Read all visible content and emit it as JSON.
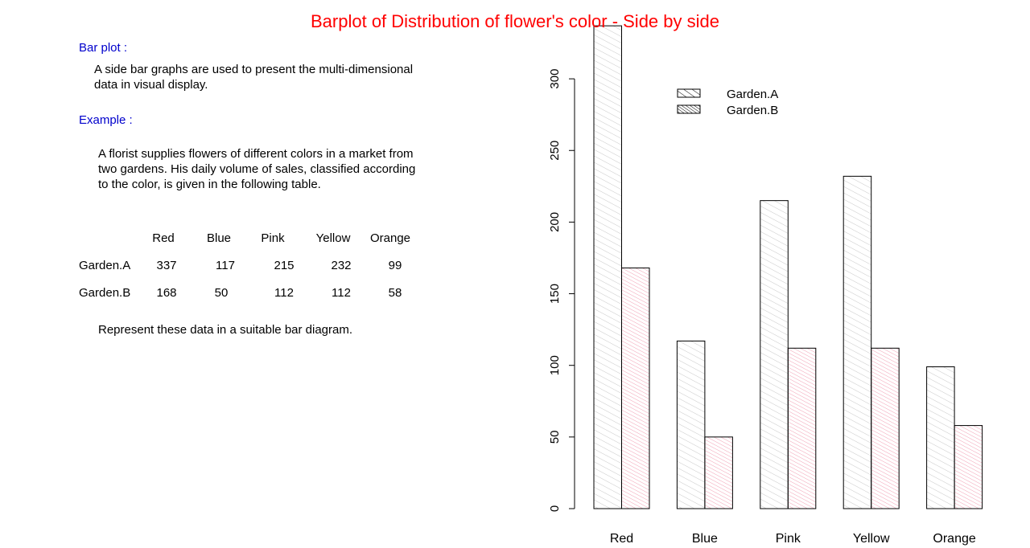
{
  "title": "Barplot of Distribution of flower's color - Side by side",
  "left_panel": {
    "barplot_heading": "Bar plot :",
    "barplot_text_1": "A side bar graphs are used to present the multi-dimensional",
    "barplot_text_2": "data in visual display.",
    "example_heading": "Example :",
    "example_text_1": "A florist supplies flowers of different colors in a market from",
    "example_text_2": "two gardens. His daily volume of sales, classified according",
    "example_text_3": "to the color, is given in the following table.",
    "table": {
      "headers": [
        "Red",
        "Blue",
        "Pink",
        "Yellow",
        "Orange"
      ],
      "rows": [
        {
          "label": "Garden.A",
          "values": [
            "337",
            "117",
            "215",
            "232",
            "99"
          ]
        },
        {
          "label": "Garden.B",
          "values": [
            "168",
            "50",
            "112",
            "112",
            "58"
          ]
        }
      ]
    },
    "closing_text": "Represent these data in a suitable bar diagram."
  },
  "colors": {
    "title": "#ff0000",
    "heading": "#0000cc",
    "garden_a_hatch": "#c8c8c8",
    "garden_b_hatch": "#f2a0b4"
  },
  "chart_data": {
    "type": "bar",
    "categories": [
      "Red",
      "Blue",
      "Pink",
      "Yellow",
      "Orange"
    ],
    "series": [
      {
        "name": "Garden.A",
        "values": [
          337,
          117,
          215,
          232,
          99
        ]
      },
      {
        "name": "Garden.B",
        "values": [
          168,
          50,
          112,
          112,
          58
        ]
      }
    ],
    "yticks": [
      0,
      50,
      100,
      150,
      200,
      250,
      300
    ],
    "ylim": [
      0,
      337
    ],
    "legend_placement": "top-center",
    "grid": false
  }
}
